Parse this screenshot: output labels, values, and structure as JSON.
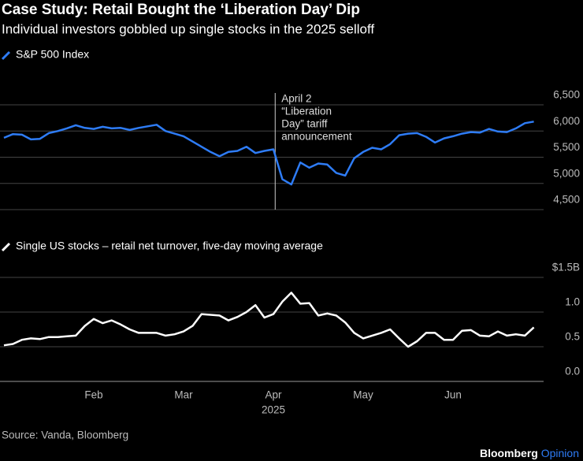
{
  "title": "Case Study: Retail Bought the ‘Liberation Day’ Dip",
  "subtitle": "Individual investors gobbled up single stocks in the 2025 selloff",
  "chart_data": [
    {
      "type": "line",
      "series": [
        {
          "name": "S&P 500 Index",
          "color": "#2e7cf6",
          "values": [
            5870,
            5940,
            5930,
            5840,
            5850,
            5960,
            6000,
            6050,
            6110,
            6060,
            6040,
            6080,
            6050,
            6060,
            6020,
            6060,
            6090,
            6120,
            6000,
            5950,
            5900,
            5800,
            5700,
            5600,
            5520,
            5600,
            5620,
            5700,
            5580,
            5620,
            5650,
            5080,
            4980,
            5400,
            5300,
            5380,
            5360,
            5200,
            5150,
            5480,
            5600,
            5680,
            5650,
            5750,
            5920,
            5950,
            5960,
            5890,
            5780,
            5860,
            5900,
            5950,
            5980,
            5970,
            6040,
            5990,
            5980,
            6050,
            6150,
            6180
          ]
        }
      ],
      "ylim": [
        4500,
        6500
      ],
      "yticks": [
        {
          "value": 4500,
          "label": "4,500"
        },
        {
          "value": 5000,
          "label": "5,000"
        },
        {
          "value": 5500,
          "label": "5,500"
        },
        {
          "value": 6000,
          "label": "6,000"
        },
        {
          "value": 6500,
          "label": "6,500"
        }
      ],
      "grid": true,
      "annotation": [
        "April 2",
        "“Liberation",
        "Day” tariff",
        "announcement"
      ]
    },
    {
      "type": "line",
      "series": [
        {
          "name": "Single US stocks – retail net turnover, five-day moving average",
          "color": "#ffffff",
          "values": [
            0.52,
            0.54,
            0.6,
            0.62,
            0.61,
            0.64,
            0.64,
            0.65,
            0.66,
            0.8,
            0.9,
            0.84,
            0.88,
            0.82,
            0.75,
            0.7,
            0.7,
            0.7,
            0.66,
            0.68,
            0.72,
            0.8,
            0.97,
            0.96,
            0.95,
            0.88,
            0.93,
            1.0,
            1.1,
            0.92,
            0.97,
            1.15,
            1.28,
            1.12,
            1.13,
            0.95,
            0.98,
            0.95,
            0.85,
            0.7,
            0.62,
            0.66,
            0.7,
            0.75,
            0.62,
            0.5,
            0.58,
            0.7,
            0.7,
            0.6,
            0.6,
            0.73,
            0.74,
            0.66,
            0.65,
            0.72,
            0.66,
            0.68,
            0.66,
            0.78
          ]
        }
      ],
      "categories": [
        null,
        null,
        null,
        null,
        null,
        null,
        null,
        null,
        null,
        null,
        "Feb",
        null,
        null,
        null,
        null,
        null,
        null,
        null,
        null,
        null,
        "Mar",
        null,
        null,
        null,
        null,
        null,
        null,
        null,
        null,
        null,
        "Apr",
        null,
        null,
        null,
        null,
        null,
        null,
        null,
        null,
        null,
        "May",
        null,
        null,
        null,
        null,
        null,
        null,
        null,
        null,
        null,
        "Jun",
        null,
        null,
        null,
        null,
        null,
        null,
        null,
        null,
        null
      ],
      "xlabel": "2025",
      "ylim": [
        0,
        1.5
      ],
      "yticks": [
        {
          "value": 0,
          "label": "0.0"
        },
        0.5,
        {
          "value": 1,
          "label": "1.0"
        },
        {
          "value": 1.5,
          "label": "$1.5B"
        }
      ],
      "grid": true
    }
  ],
  "source": "Source: Vanda, Bloomberg",
  "brand": [
    "Bloomberg",
    "Opinion"
  ]
}
